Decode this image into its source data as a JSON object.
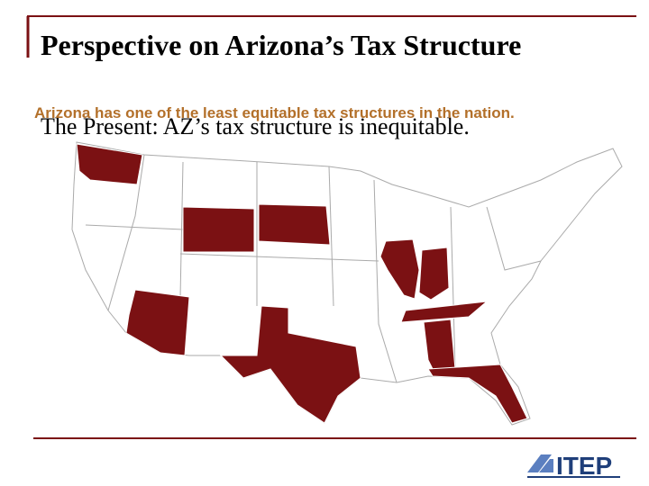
{
  "header": {
    "title": "Perspective on Arizona’s Tax Structure",
    "subtitle": "The Present: AZ’s tax structure is inequitable.",
    "overlay": "Arizona has one of the least equitable tax structures in the nation."
  },
  "logo": {
    "text": "ITEP"
  }
}
